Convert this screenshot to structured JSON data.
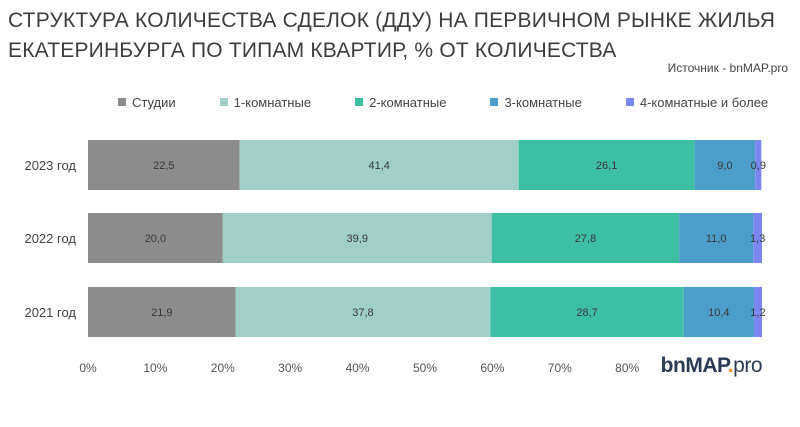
{
  "title_line1": "СТРУКТУРА КОЛИЧЕСТВА СДЕЛОК (ДДУ) НА ПЕРВИЧНОМ РЫНКЕ ЖИЛЬЯ",
  "title_line2": "ЕКАТЕРИНБУРГА ПО ТИПАМ КВАРТИР, % ОТ КОЛИЧЕСТВА",
  "source": "Источник - bnMAP.pro",
  "logo": {
    "part1": "bnMAP",
    "dot": ".",
    "part2": "pro"
  },
  "chart_data": {
    "type": "bar",
    "orientation": "horizontal",
    "stacked": true,
    "title": "СТРУКТУРА КОЛИЧЕСТВА СДЕЛОК (ДДУ) НА ПЕРВИЧНОМ РЫНКЕ ЖИЛЬЯ ЕКАТЕРИНБУРГА ПО ТИПАМ КВАРТИР, % ОТ КОЛИЧЕСТВА",
    "categories": [
      "2023 год",
      "2022 год",
      "2021 год"
    ],
    "series": [
      {
        "name": "Студии",
        "color": "#8c8c8c",
        "values": [
          22.5,
          20.0,
          21.9
        ],
        "labels": [
          "22,5",
          "20,0",
          "21,9"
        ]
      },
      {
        "name": "1-комнатные",
        "color": "#9fcfc6",
        "values": [
          41.4,
          39.9,
          37.8
        ],
        "labels": [
          "41,4",
          "39,9",
          "37,8"
        ]
      },
      {
        "name": "2-комнатные",
        "color": "#3dbfa3",
        "values": [
          26.1,
          27.8,
          28.7
        ],
        "labels": [
          "26,1",
          "27,8",
          "28,7"
        ]
      },
      {
        "name": "3-комнатные",
        "color": "#4b9ec9",
        "values": [
          9.0,
          11.0,
          10.4
        ],
        "labels": [
          "9,0",
          "11,0",
          "10,4"
        ]
      },
      {
        "name": "4-комнатные и более",
        "color": "#7b86f0",
        "values": [
          0.9,
          1.3,
          1.2
        ],
        "labels": [
          "0,9",
          "1,3",
          "1,2"
        ]
      }
    ],
    "xlim": [
      0,
      100
    ],
    "x_ticks": [
      0,
      10,
      20,
      30,
      40,
      50,
      60,
      70,
      80
    ],
    "x_tick_labels": [
      "0%",
      "10%",
      "20%",
      "30%",
      "40%",
      "50%",
      "60%",
      "70%",
      "80%"
    ],
    "legend_position": "top",
    "grid": false
  }
}
